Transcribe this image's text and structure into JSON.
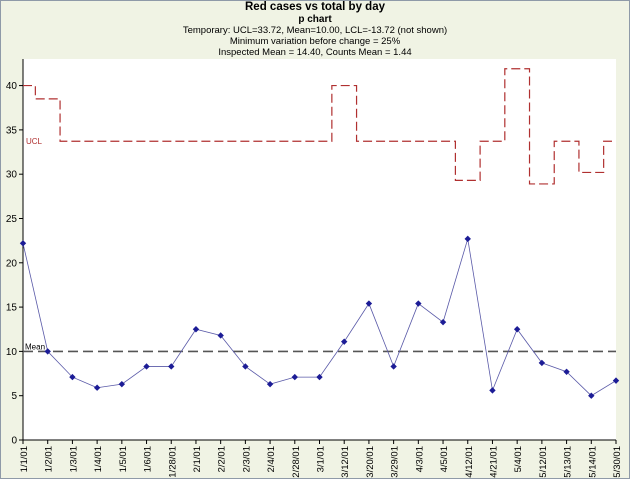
{
  "chart_data": {
    "type": "line",
    "title": "Red cases vs total by day",
    "subtitle": "p chart",
    "notes": [
      "Temporary: UCL=33.72, Mean=10.00, LCL=-13.72 (not shown)",
      "Minimum variation before change = 25%",
      "Inspected Mean = 14.40, Counts Mean = 1.44"
    ],
    "categories": [
      "1/1/01",
      "1/2/01",
      "1/3/01",
      "1/4/01",
      "1/5/01",
      "1/6/01",
      "1/28/01",
      "2/1/01",
      "2/2/01",
      "2/3/01",
      "2/4/01",
      "2/28/01",
      "3/1/01",
      "3/12/01",
      "3/20/01",
      "3/29/01",
      "4/3/01",
      "4/5/01",
      "4/12/01",
      "4/21/01",
      "5/4/01",
      "5/12/01",
      "5/13/01",
      "5/14/01",
      "5/30/01"
    ],
    "series": [
      {
        "values": [
          22.2,
          10.0,
          7.1,
          5.9,
          6.3,
          8.3,
          8.3,
          12.5,
          11.8,
          8.3,
          6.3,
          7.1,
          7.1,
          11.1,
          15.4,
          8.3,
          15.4,
          13.3,
          22.7,
          5.6,
          12.5,
          8.7,
          7.7,
          5.0,
          6.7
        ],
        "color": "#1c1c96"
      }
    ],
    "ucl": {
      "label": "UCL",
      "values": [
        40.0,
        38.5,
        33.72,
        33.72,
        33.72,
        33.72,
        33.72,
        33.72,
        33.72,
        33.72,
        33.72,
        33.72,
        33.72,
        40.0,
        33.72,
        33.72,
        33.72,
        33.72,
        29.3,
        33.72,
        41.9,
        28.9,
        33.72,
        30.2,
        33.72
      ],
      "color": "#b03030"
    },
    "mean": {
      "label": "Mean",
      "value": 10.0,
      "color": "#555555"
    },
    "ylim": [
      0,
      43
    ],
    "yticks": [
      0,
      5,
      10,
      15,
      20,
      25,
      30,
      35,
      40
    ],
    "colors": {
      "background": "#f0f3e4",
      "plot_background": "#ffffff",
      "axis": "#000000"
    }
  }
}
